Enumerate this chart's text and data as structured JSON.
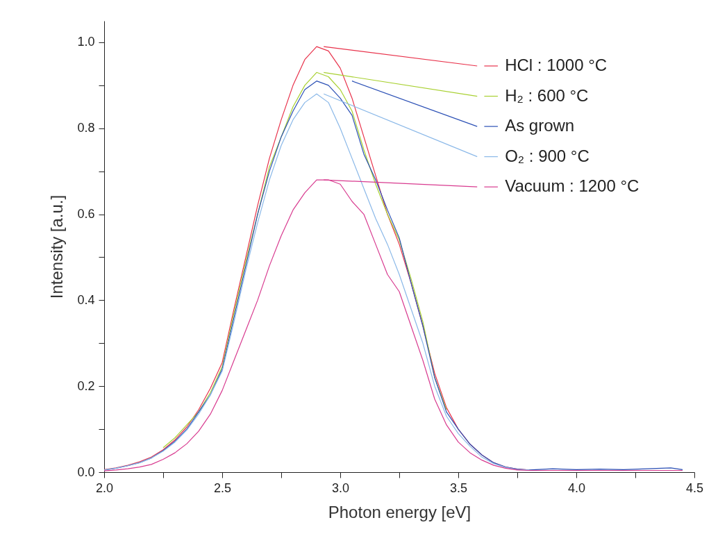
{
  "chart_data": {
    "type": "line",
    "xlabel": "Photon energy [eV]",
    "ylabel": "Intensity [a.u.]",
    "x": [
      2.0,
      2.05,
      2.1,
      2.15,
      2.2,
      2.25,
      2.3,
      2.35,
      2.4,
      2.45,
      2.5,
      2.55,
      2.6,
      2.65,
      2.7,
      2.75,
      2.8,
      2.85,
      2.9,
      2.95,
      3.0,
      3.05,
      3.1,
      3.15,
      3.2,
      3.25,
      3.3,
      3.35,
      3.4,
      3.45,
      3.5,
      3.55,
      3.6,
      3.65,
      3.7,
      3.75,
      3.8,
      3.9,
      4.0,
      4.1,
      4.2,
      4.3,
      4.4,
      4.45
    ],
    "series": [
      {
        "name": "HCl : 1000 °C",
        "color": "#e8314a",
        "values": [
          0.006,
          0.01,
          0.016,
          0.024,
          0.035,
          0.052,
          0.075,
          0.105,
          0.145,
          0.195,
          0.255,
          0.38,
          0.5,
          0.62,
          0.73,
          0.82,
          0.9,
          0.96,
          0.99,
          0.98,
          0.94,
          0.87,
          0.78,
          0.69,
          0.6,
          0.53,
          0.44,
          0.34,
          0.23,
          0.15,
          0.1,
          0.065,
          0.04,
          0.022,
          0.012,
          0.007,
          0.005,
          null,
          null,
          null,
          null,
          null,
          null,
          null
        ]
      },
      {
        "name": "H₂ : 600 °C",
        "color": "#a8d030",
        "values": [
          null,
          null,
          null,
          null,
          null,
          0.057,
          0.08,
          0.11,
          0.14,
          0.185,
          0.245,
          0.37,
          0.49,
          0.6,
          0.71,
          0.78,
          0.85,
          0.9,
          0.93,
          0.92,
          0.89,
          0.84,
          0.75,
          0.67,
          0.6,
          0.54,
          0.45,
          0.35,
          0.22,
          0.145,
          null,
          null,
          null,
          null,
          null,
          null,
          null,
          null,
          null,
          null,
          null,
          null,
          null,
          null
        ]
      },
      {
        "name": "As grown",
        "color": "#2a4fb5",
        "values": [
          0.005,
          0.009,
          0.015,
          0.022,
          0.033,
          0.05,
          0.072,
          0.1,
          0.14,
          0.18,
          0.24,
          0.36,
          0.48,
          0.6,
          0.7,
          0.78,
          0.84,
          0.89,
          0.91,
          0.9,
          0.87,
          0.83,
          0.74,
          0.68,
          0.61,
          0.545,
          0.44,
          0.34,
          0.22,
          0.14,
          0.1,
          0.065,
          0.04,
          0.022,
          0.012,
          0.007,
          0.005,
          0.008,
          0.006,
          0.007,
          0.006,
          0.008,
          0.01,
          0.006
        ]
      },
      {
        "name": "O₂ : 900 °C",
        "color": "#8ab8e8",
        "values": [
          0.005,
          0.009,
          0.015,
          0.022,
          0.033,
          0.049,
          0.07,
          0.098,
          0.135,
          0.18,
          0.235,
          0.35,
          0.47,
          0.58,
          0.68,
          0.76,
          0.82,
          0.86,
          0.88,
          0.86,
          0.8,
          0.73,
          0.66,
          0.59,
          0.53,
          0.46,
          0.38,
          0.3,
          0.2,
          0.13,
          0.09,
          0.06,
          0.035,
          0.02,
          0.011,
          0.006,
          0.005,
          null,
          null,
          null,
          null,
          null,
          null,
          null
        ]
      },
      {
        "name": "Vacuum : 1200 °C",
        "color": "#d83a8f",
        "values": [
          0.003,
          0.005,
          0.008,
          0.012,
          0.018,
          0.03,
          0.045,
          0.066,
          0.095,
          0.135,
          0.19,
          0.26,
          0.33,
          0.4,
          0.48,
          0.55,
          0.61,
          0.65,
          0.68,
          0.68,
          0.67,
          0.63,
          0.6,
          0.53,
          0.46,
          0.42,
          0.34,
          0.26,
          0.17,
          0.11,
          0.07,
          0.045,
          0.028,
          0.016,
          0.009,
          0.005,
          0.004,
          0.004,
          0.004,
          0.004,
          0.004,
          0.004,
          0.004,
          0.004
        ]
      }
    ],
    "xlim": [
      2.0,
      4.5
    ],
    "xticks": [
      {
        "value": 2.0,
        "label": "2.0"
      },
      {
        "value": 2.25,
        "label": null
      },
      {
        "value": 2.5,
        "label": "2.5"
      },
      {
        "value": 2.75,
        "label": null
      },
      {
        "value": 3.0,
        "label": "3.0"
      },
      {
        "value": 3.25,
        "label": null
      },
      {
        "value": 3.5,
        "label": "3.5"
      },
      {
        "value": 3.75,
        "label": null
      },
      {
        "value": 4.0,
        "label": "4.0"
      },
      {
        "value": 4.25,
        "label": null
      },
      {
        "value": 4.5,
        "label": "4.5"
      }
    ],
    "ylim": [
      0.0,
      1.05
    ],
    "yticks": [
      {
        "value": 0,
        "label": "0.0"
      },
      {
        "value": 0.1,
        "label": null
      },
      {
        "value": 0.2,
        "label": "0.2"
      },
      {
        "value": 0.3,
        "label": null
      },
      {
        "value": 0.4,
        "label": "0.4"
      },
      {
        "value": 0.5,
        "label": null
      },
      {
        "value": 0.6,
        "label": "0.6"
      },
      {
        "value": 0.7,
        "label": null
      },
      {
        "value": 0.8,
        "label": "0.8"
      },
      {
        "value": 0.9,
        "label": null
      },
      {
        "value": 1.0,
        "label": "1.0"
      }
    ],
    "legend": "right",
    "line_style": "solid",
    "marker": "none",
    "grid": false
  }
}
